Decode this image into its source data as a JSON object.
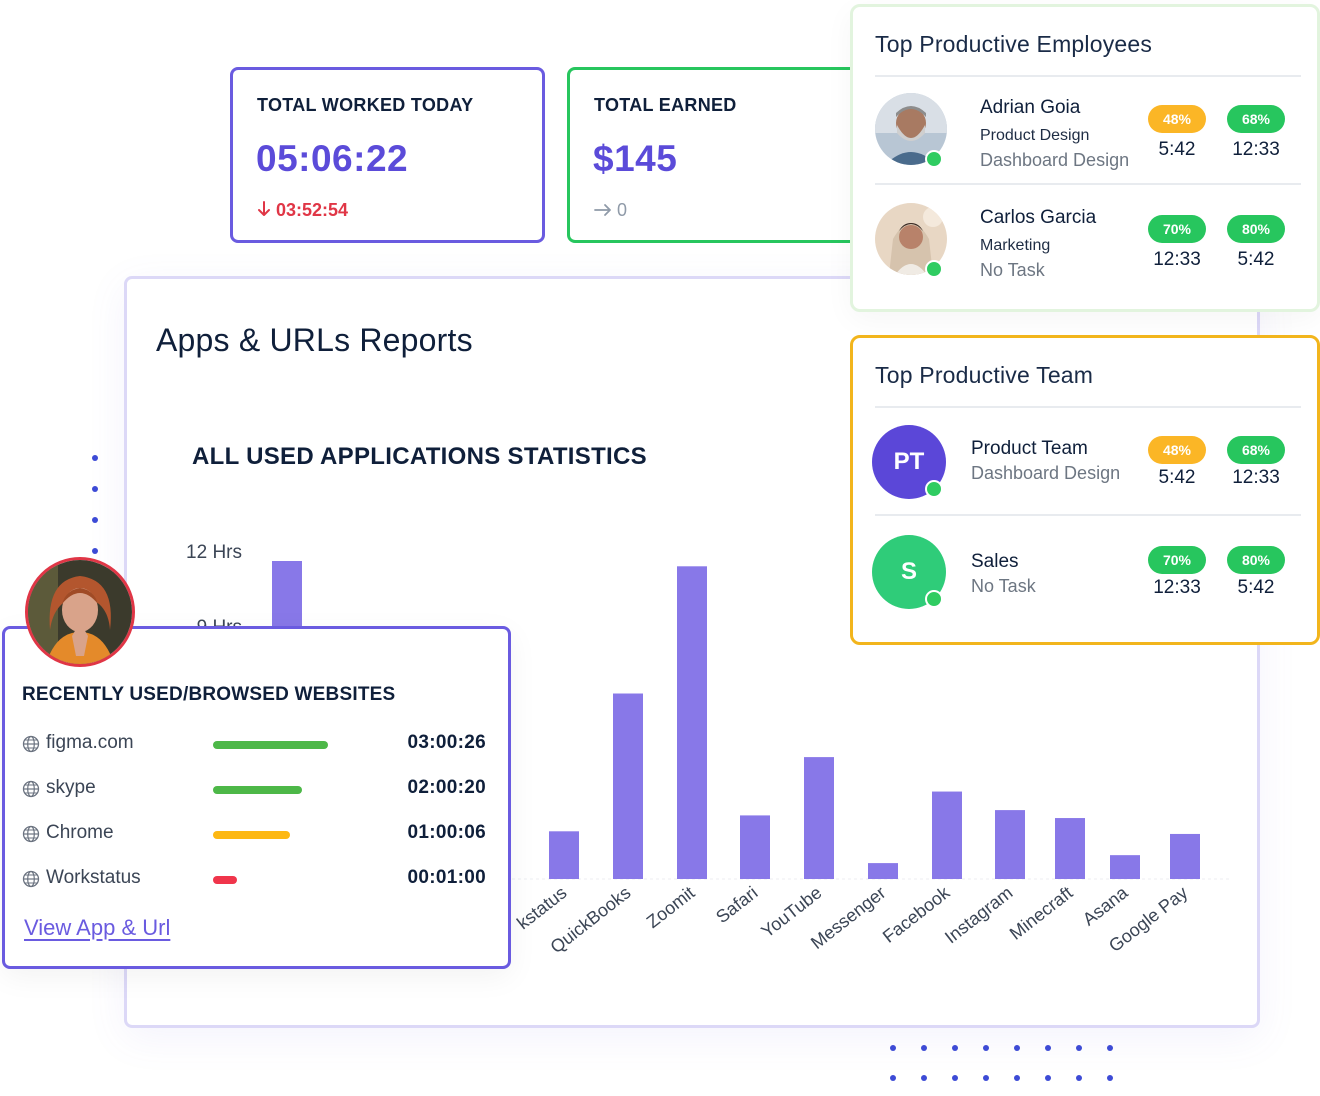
{
  "stats": {
    "worked": {
      "label": "TOTAL WORKED TODAY",
      "value": "05:06:22",
      "delta": "03:52:54",
      "delta_icon": "arrow-down-icon"
    },
    "earned": {
      "label": "TOTAL EARNED",
      "value": "$145",
      "delta": "0",
      "delta_icon": "arrow-right-icon"
    }
  },
  "report": {
    "title": "Apps & URLs Reports",
    "subtitle": "ALL USED APPLICATIONS STATISTICS"
  },
  "employees": {
    "title": "Top Productive Employees",
    "items": [
      {
        "name": "Adrian Goia",
        "role": "Product Design",
        "task": "Dashboard Design",
        "pct1": "48%",
        "pct2": "68%",
        "time1": "5:42",
        "time2": "12:33"
      },
      {
        "name": "Carlos Garcia",
        "role": "Marketing",
        "task": "No Task",
        "pct1": "70%",
        "pct2": "80%",
        "time1": "12:33",
        "time2": "5:42"
      }
    ]
  },
  "teams": {
    "title": "Top Productive Team",
    "items": [
      {
        "initials": "PT",
        "name": "Product Team",
        "task": "Dashboard Design",
        "pct1": "48%",
        "pct2": "68%",
        "time1": "5:42",
        "time2": "12:33"
      },
      {
        "initials": "S",
        "name": "Sales",
        "task": "No Task",
        "pct1": "70%",
        "pct2": "80%",
        "time1": "12:33",
        "time2": "5:42"
      }
    ]
  },
  "websites": {
    "title": "RECENTLY USED/BROWSED WEBSITES",
    "items": [
      {
        "name": "figma.com",
        "time": "03:00:26",
        "fraction": 1.0,
        "color": "#4db848"
      },
      {
        "name": "skype",
        "time": "02:00:20",
        "fraction": 0.77,
        "color": "#4db848"
      },
      {
        "name": "Chrome",
        "time": "01:00:06",
        "fraction": 0.67,
        "color": "#fdb813"
      },
      {
        "name": "Workstatus",
        "time": "00:01:00",
        "fraction": 0.21,
        "color": "#f0354b"
      }
    ],
    "link": "View App & Url"
  },
  "chart_data": {
    "type": "bar",
    "title": "ALL USED APPLICATIONS STATISTICS",
    "y_tick_labels": [
      "12 Hrs",
      "9 Hrs"
    ],
    "ylim": [
      0,
      12
    ],
    "color": "#8878e8",
    "categories": [
      "",
      "Workstatus",
      "QuickBooks",
      "Zoomit",
      "Safari",
      "YouTube",
      "Messenger",
      "Facebook",
      "Instagram",
      "Minecraft",
      "Asana",
      "Google Pay"
    ],
    "visible_labels": [
      "kstatus",
      "QuickBooks",
      "Zoomit",
      "Safari",
      "YouTube",
      "Messenger",
      "Facebook",
      "Instagram",
      "Minecraft",
      "Asana",
      "Google Pay"
    ],
    "values": [
      12.0,
      1.8,
      7.0,
      11.8,
      2.4,
      4.6,
      0.6,
      3.3,
      2.6,
      2.3,
      0.9,
      1.7
    ]
  }
}
